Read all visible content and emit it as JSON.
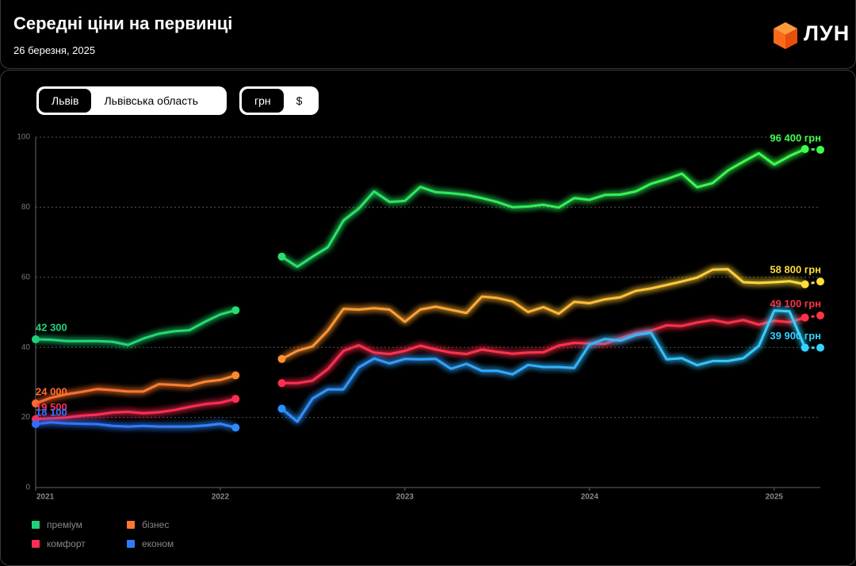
{
  "header": {
    "title": "Середні ціни на первинці",
    "date": "26 березня, 2025",
    "logo": "ЛУН"
  },
  "controls": {
    "region_tabs": [
      "Львів",
      "Львівська область"
    ],
    "region_active": 0,
    "currency_tabs": [
      "грн",
      "$"
    ],
    "currency_active": 0
  },
  "chart_data": {
    "type": "line",
    "grid": true,
    "x": [
      2021,
      2021.083,
      2021.167,
      2021.25,
      2021.333,
      2021.417,
      2021.5,
      2021.583,
      2021.667,
      2021.75,
      2021.833,
      2021.917,
      2022,
      2022.083,
      2022.167,
      2022.25,
      2022.333,
      2022.417,
      2022.5,
      2022.583,
      2022.667,
      2022.75,
      2022.833,
      2022.917,
      2023,
      2023.083,
      2023.167,
      2023.25,
      2023.333,
      2023.417,
      2023.5,
      2023.583,
      2023.667,
      2023.75,
      2023.833,
      2023.917,
      2024,
      2024.083,
      2024.167,
      2024.25,
      2024.333,
      2024.417,
      2024.5,
      2024.583,
      2024.667,
      2024.75,
      2024.833,
      2024.917,
      2025,
      2025.083,
      2025.167,
      2025.25
    ],
    "xlim": [
      2021,
      2025.25
    ],
    "xticks": [
      2021,
      2022,
      2023,
      2024,
      2025
    ],
    "ylim": [
      0,
      100
    ],
    "yticks": [
      0,
      20,
      40,
      60,
      80,
      100
    ],
    "series": [
      {
        "name": "преміум",
        "color": [
          "#1fd27a",
          "#3dff4a"
        ],
        "values": [
          42.3,
          42.2,
          41.8,
          41.8,
          41.8,
          41.6,
          40.7,
          42.5,
          43.9,
          44.6,
          44.9,
          47.3,
          49.4,
          50.6,
          null,
          null,
          65.9,
          63.0,
          65.9,
          68.6,
          76.2,
          79.6,
          84.5,
          81.5,
          81.8,
          85.8,
          84.3,
          84.0,
          83.5,
          82.6,
          81.5,
          80.0,
          80.2,
          80.7,
          79.9,
          82.6,
          82.1,
          83.5,
          83.6,
          84.5,
          86.7,
          88.0,
          89.6,
          85.7,
          86.9,
          90.5,
          93.0,
          95.4,
          92.2,
          94.6,
          96.6,
          96.4
        ],
        "value_labels": [
          "42 300",
          null,
          null,
          null,
          null,
          null,
          null,
          null,
          null,
          null,
          null,
          null,
          null,
          null,
          null,
          null,
          null,
          null,
          null,
          null,
          null,
          null,
          null,
          null,
          null,
          null,
          null,
          null,
          null,
          null,
          null,
          null,
          null,
          null,
          null,
          null,
          null,
          null,
          null,
          null,
          null,
          null,
          null,
          null,
          null,
          null,
          null,
          null,
          null,
          null,
          null,
          "96 400 грн"
        ]
      },
      {
        "name": "бізнес",
        "color": [
          "#ff6a2e",
          "#ffe03b"
        ],
        "values": [
          24.0,
          25.6,
          26.6,
          27.3,
          28.1,
          27.8,
          27.4,
          27.4,
          29.5,
          29.3,
          29.0,
          30.2,
          30.7,
          32.0,
          null,
          null,
          36.7,
          39.0,
          40.3,
          44.8,
          51.0,
          50.8,
          51.2,
          50.8,
          47.3,
          50.8,
          51.6,
          50.7,
          49.8,
          54.5,
          54.1,
          53.1,
          50.1,
          51.5,
          49.6,
          53.0,
          52.6,
          53.7,
          54.3,
          56.1,
          56.8,
          57.8,
          58.8,
          59.9,
          62.2,
          62.3,
          58.6,
          58.4,
          58.6,
          58.9,
          58.0,
          58.8
        ],
        "value_labels": [
          "24 000",
          null,
          null,
          null,
          null,
          null,
          null,
          null,
          null,
          null,
          null,
          null,
          null,
          null,
          null,
          null,
          null,
          null,
          null,
          null,
          null,
          null,
          null,
          null,
          null,
          null,
          null,
          null,
          null,
          null,
          null,
          null,
          null,
          null,
          null,
          null,
          null,
          null,
          null,
          null,
          null,
          null,
          null,
          null,
          null,
          null,
          null,
          null,
          null,
          null,
          null,
          "58 800 грн"
        ]
      },
      {
        "name": "комфорт",
        "color": [
          "#ff2d55",
          "#ff3347"
        ],
        "values": [
          19.5,
          19.7,
          20.0,
          20.5,
          20.8,
          21.4,
          21.6,
          21.2,
          21.5,
          22.1,
          23.0,
          23.8,
          24.2,
          25.3,
          null,
          null,
          29.8,
          29.8,
          30.5,
          33.8,
          39.0,
          40.6,
          38.5,
          38.1,
          39.0,
          40.5,
          39.4,
          38.5,
          38.1,
          39.4,
          38.7,
          38.2,
          38.5,
          38.6,
          40.5,
          41.3,
          41.1,
          41.0,
          42.6,
          44.0,
          44.8,
          46.3,
          46.1,
          47.1,
          47.8,
          47.0,
          47.8,
          46.5,
          47.6,
          47.2,
          48.5,
          49.1
        ],
        "value_labels": [
          "19 500",
          null,
          null,
          null,
          null,
          null,
          null,
          null,
          null,
          null,
          null,
          null,
          null,
          null,
          null,
          null,
          null,
          null,
          null,
          null,
          null,
          null,
          null,
          null,
          null,
          null,
          null,
          null,
          null,
          null,
          null,
          null,
          null,
          null,
          null,
          null,
          null,
          null,
          null,
          null,
          null,
          null,
          null,
          null,
          null,
          null,
          null,
          null,
          null,
          null,
          null,
          "49 100 грн"
        ]
      },
      {
        "name": "економ",
        "color": [
          "#2f6fff",
          "#35d4ff"
        ],
        "values": [
          18.1,
          18.6,
          18.3,
          18.2,
          18.1,
          17.6,
          17.4,
          17.6,
          17.4,
          17.4,
          17.4,
          17.7,
          18.2,
          17.1,
          null,
          null,
          22.5,
          18.8,
          25.4,
          28.0,
          28.0,
          34.3,
          36.8,
          35.4,
          36.7,
          36.6,
          36.7,
          33.9,
          35.3,
          33.3,
          33.3,
          32.3,
          35.0,
          34.4,
          34.4,
          34.1,
          40.8,
          42.4,
          41.9,
          43.5,
          44.2,
          36.6,
          36.9,
          34.9,
          36.1,
          36.1,
          36.9,
          40.4,
          50.5,
          50.3,
          39.9,
          39.9
        ],
        "value_labels": [
          "18 100",
          null,
          null,
          null,
          null,
          null,
          null,
          null,
          null,
          null,
          null,
          null,
          null,
          null,
          null,
          null,
          null,
          null,
          null,
          null,
          null,
          null,
          null,
          null,
          null,
          null,
          null,
          null,
          null,
          null,
          null,
          null,
          null,
          null,
          null,
          null,
          null,
          null,
          null,
          null,
          null,
          null,
          null,
          null,
          null,
          null,
          null,
          null,
          null,
          null,
          null,
          "39 900 грн"
        ]
      }
    ]
  }
}
